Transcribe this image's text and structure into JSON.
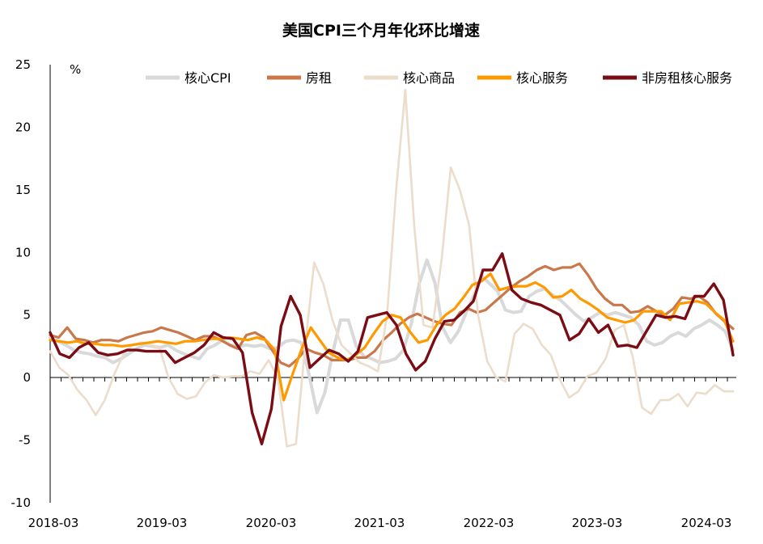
{
  "chart_data": {
    "type": "line",
    "title": "美国CPI三个月年化环比增速",
    "ylabel": "%",
    "ylim": [
      -10,
      25
    ],
    "yticks": [
      25,
      20,
      15,
      10,
      5,
      0,
      -5,
      -10
    ],
    "xticks": [
      "2018-03",
      "2019-03",
      "2020-03",
      "2021-03",
      "2022-03",
      "2023-03",
      "2024-03"
    ],
    "legend_position": "top",
    "start_month": "2018-03",
    "series": [
      {
        "name": "核心CPI",
        "color": "#d9d9d9",
        "values": [
          3.2,
          2.9,
          2.6,
          2.2,
          2.0,
          1.9,
          1.7,
          1.6,
          1.2,
          1.5,
          1.9,
          2.3,
          2.6,
          2.5,
          2.4,
          2.6,
          2.2,
          1.9,
          1.7,
          1.5,
          2.3,
          2.6,
          3.0,
          2.6,
          2.5,
          2.6,
          2.5,
          2.6,
          2.3,
          2.4,
          2.9,
          3.0,
          2.8,
          0.2,
          -2.8,
          -1.2,
          2.0,
          4.6,
          4.6,
          2.5,
          1.7,
          1.5,
          1.2,
          1.3,
          1.5,
          2.2,
          4.3,
          7.5,
          9.4,
          7.6,
          4.0,
          2.8,
          3.7,
          5.2,
          6.6,
          8.1,
          7.5,
          6.9,
          5.4,
          5.2,
          5.3,
          6.5,
          6.9,
          7.1,
          6.6,
          6.2,
          5.6,
          5.0,
          4.5,
          4.8,
          5.2,
          5.0,
          5.2,
          5.0,
          4.8,
          4.2,
          2.9,
          2.6,
          2.8,
          3.3,
          3.6,
          3.3,
          3.9,
          4.2,
          4.6,
          4.2,
          3.7,
          2.2
        ]
      },
      {
        "name": "房租",
        "color": "#c8784a",
        "values": [
          3.4,
          3.2,
          4.0,
          3.1,
          3.0,
          2.8,
          3.0,
          3.0,
          2.9,
          3.2,
          3.4,
          3.6,
          3.7,
          4.0,
          3.8,
          3.6,
          3.3,
          3.0,
          3.3,
          3.3,
          3.0,
          2.6,
          2.3,
          3.4,
          3.6,
          3.2,
          2.2,
          1.2,
          0.9,
          1.5,
          2.3,
          2.0,
          1.8,
          1.4,
          1.4,
          1.4,
          1.6,
          1.6,
          2.1,
          3.0,
          3.6,
          4.3,
          4.8,
          5.1,
          4.8,
          4.5,
          4.3,
          4.2,
          5.2,
          5.5,
          5.2,
          5.4,
          6.0,
          6.6,
          7.2,
          7.7,
          8.1,
          8.6,
          8.9,
          8.6,
          8.8,
          8.8,
          9.1,
          8.2,
          7.1,
          6.3,
          5.8,
          5.8,
          5.2,
          5.3,
          5.7,
          5.3,
          5.0,
          5.5,
          6.4,
          6.3,
          6.5,
          6.0,
          5.1,
          4.5,
          3.9
        ]
      },
      {
        "name": "核心商品",
        "color": "#ecdccb",
        "values": [
          2.1,
          0.8,
          0.2,
          -1.0,
          -1.8,
          -3.0,
          -1.8,
          0.2,
          1.8,
          2.6,
          2.8,
          2.6,
          2.4,
          0.0,
          -1.3,
          -1.7,
          -1.5,
          -0.4,
          0.2,
          0.0,
          0.1,
          0.1,
          0.5,
          0.3,
          1.4,
          0.0,
          -5.5,
          -5.3,
          2.5,
          9.2,
          7.5,
          4.6,
          2.6,
          1.9,
          1.2,
          0.9,
          0.5,
          5.0,
          15.0,
          23.0,
          12.0,
          4.2,
          4.0,
          9.5,
          16.8,
          15.0,
          12.2,
          5.0,
          1.3,
          0.0,
          -0.3,
          3.5,
          4.3,
          3.9,
          2.6,
          1.8,
          -0.2,
          -1.6,
          -1.1,
          0.1,
          0.4,
          1.5,
          3.8,
          4.2,
          1.6,
          -2.4,
          -2.9,
          -1.8,
          -1.8,
          -1.3,
          -2.3,
          -1.2,
          -1.3,
          -0.6,
          -1.1,
          -1.1
        ]
      },
      {
        "name": "核心服务",
        "color": "#ff9900",
        "values": [
          3.0,
          2.9,
          2.8,
          2.9,
          2.7,
          2.7,
          2.6,
          2.6,
          2.5,
          2.6,
          2.7,
          2.8,
          2.9,
          2.8,
          2.7,
          2.9,
          2.9,
          3.0,
          3.1,
          3.1,
          3.2,
          3.1,
          3.0,
          3.2,
          3.0,
          2.2,
          -1.8,
          0.3,
          2.3,
          4.0,
          3.0,
          2.0,
          1.6,
          1.4,
          1.8,
          2.4,
          3.5,
          4.5,
          5.0,
          4.8,
          3.7,
          2.8,
          3.0,
          4.2,
          5.0,
          5.5,
          6.4,
          7.4,
          7.7,
          8.3,
          7.0,
          7.2,
          7.3,
          7.3,
          7.6,
          7.2,
          6.4,
          6.5,
          7.0,
          6.3,
          5.9,
          5.4,
          4.8,
          4.6,
          4.4,
          4.6,
          5.3,
          5.3,
          5.3,
          4.6,
          5.9,
          6.0,
          6.1,
          5.9,
          5.2,
          4.6,
          2.9
        ]
      },
      {
        "name": "非房租核心服务",
        "color": "#7b0c14",
        "values": [
          3.6,
          1.9,
          1.6,
          2.4,
          2.8,
          2.0,
          1.8,
          1.9,
          2.2,
          2.2,
          2.1,
          2.1,
          2.1,
          1.2,
          1.6,
          2.0,
          2.6,
          3.6,
          3.2,
          3.1,
          2.0,
          -2.8,
          -5.3,
          -2.5,
          4.1,
          6.5,
          5.0,
          0.8,
          1.5,
          2.2,
          1.9,
          1.3,
          2.1,
          4.8,
          5.0,
          5.2,
          4.2,
          1.9,
          0.6,
          1.3,
          3.1,
          4.5,
          4.6,
          5.3,
          6.1,
          8.6,
          8.6,
          9.9,
          7.0,
          6.3,
          6.0,
          5.8,
          5.4,
          5.0,
          3.0,
          3.5,
          4.7,
          3.6,
          4.2,
          2.5,
          2.6,
          2.4,
          3.7,
          5.0,
          4.8,
          4.9,
          4.7,
          6.5,
          6.5,
          7.5,
          6.2,
          1.8
        ]
      }
    ]
  }
}
